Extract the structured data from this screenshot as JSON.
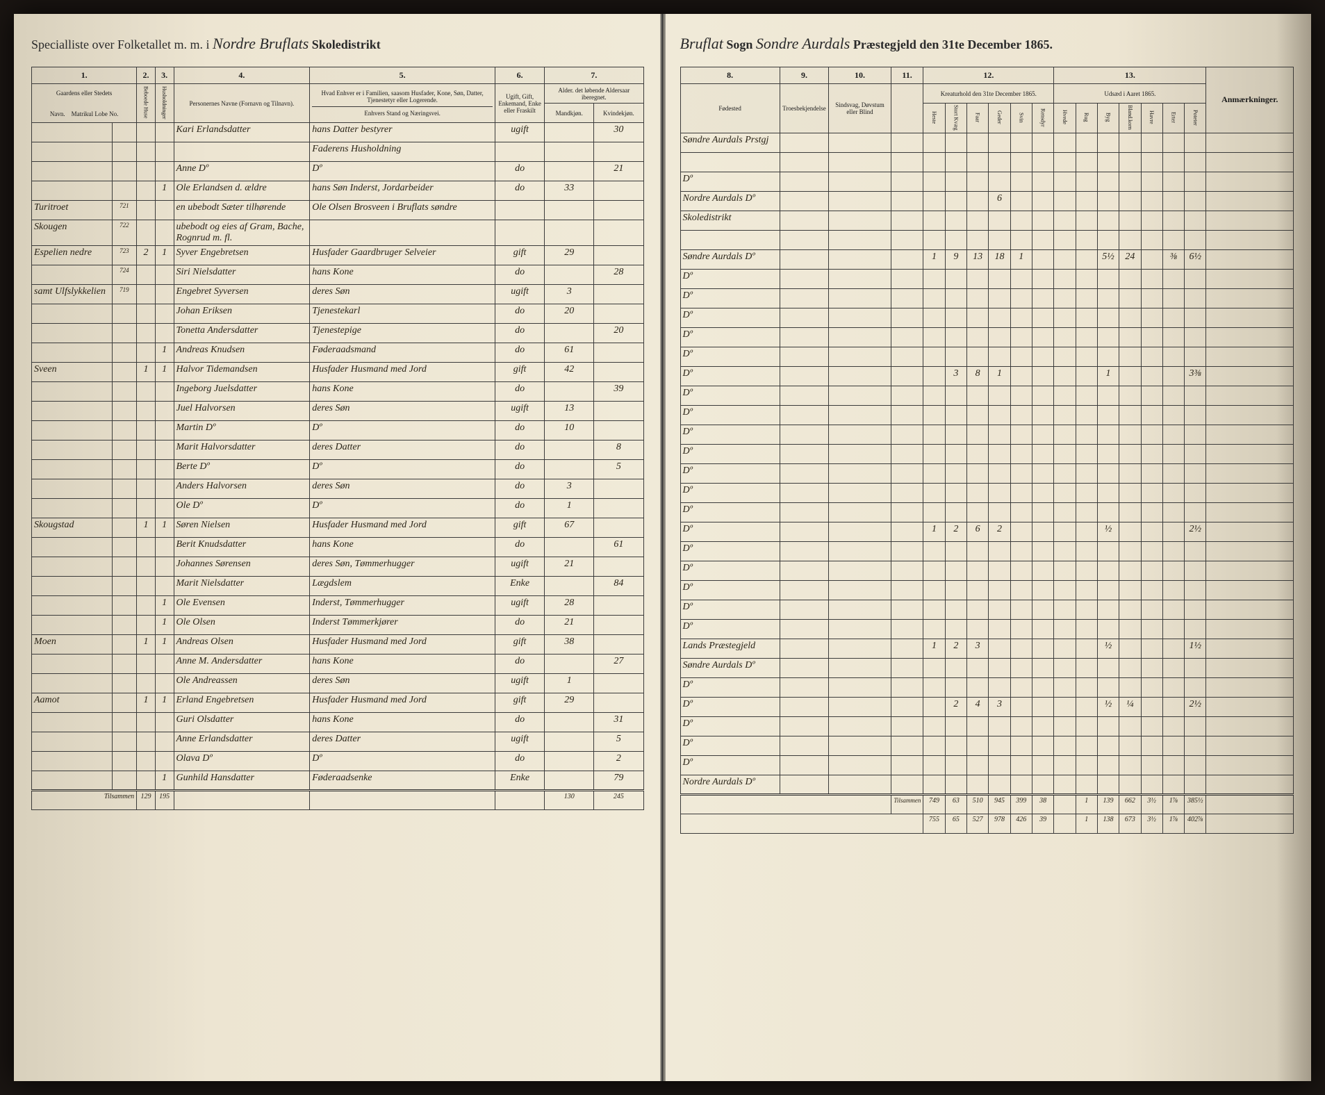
{
  "header_left": {
    "prefix": "Specialliste over Folketallet m. m. i",
    "district": "Nordre Bruflats",
    "suffix": "Skoledistrikt"
  },
  "header_right": {
    "sogn": "Bruflat",
    "sogn_label": "Sogn",
    "praestegjeld": "Sondre Aurdals",
    "praestegjeld_label": "Præstegjeld den",
    "date": "31te December 1865."
  },
  "col_headers_left": {
    "c1": "1.",
    "c2": "2.",
    "c3": "3.",
    "c4": "4.",
    "c5": "5.",
    "c6": "6.",
    "c7": "7.",
    "c1_label": "Gaardens eller Stedets",
    "c1_sub": "Navn.",
    "c1_sub2": "Matrikul Lobe No.",
    "c4_label": "Personernes Navne (Fornavn og Tilnavn).",
    "c5_label": "Hvad Enhver er i Familien, saasom Husfader, Kone, Søn, Datter, Tjenestetyr eller Logerende.",
    "c5_sub": "Enhvers Stand og Næringsvei.",
    "c6_label": "Ugift, Gift, Enkemand, Enke eller Fraskilt",
    "c7_label": "Alder. det løbende Aldersaar iberegnet.",
    "c7_sub_m": "Mandkjøn.",
    "c7_sub_k": "Kvindekjøn."
  },
  "col_headers_right": {
    "c8": "8.",
    "c9": "9.",
    "c10": "10.",
    "c11": "11.",
    "c12": "12.",
    "c13": "13.",
    "c8_label": "Fødested",
    "c9_label": "Troesbekjendelse",
    "c10_label": "Sindsvag, Døvstum eller Blind",
    "c11_label": "",
    "c12_label": "Kreaturhold den 31te December 1865.",
    "c13_label": "Udsæd i Aaret 1865.",
    "c12_cols": [
      "Heste",
      "Stort Kvæg",
      "Faar",
      "Geder",
      "Svin",
      "Rensdyr"
    ],
    "c13_cols": [
      "Hvede",
      "Rug",
      "Byg",
      "Bland.korn",
      "Havre",
      "Erter",
      "Poteter"
    ],
    "anm": "Anmærkninger."
  },
  "rows": [
    {
      "gaard": "",
      "mn": "",
      "p": "",
      "h": "",
      "navn": "Kari Erlandsdatter",
      "stand": "hans Datter bestyrer",
      "status": "ugift",
      "m": "",
      "k": "30",
      "fode": "Søndre Aurdals Prstgj",
      "c12": [
        "",
        "",
        "",
        "",
        "",
        ""
      ],
      "c13": [
        "",
        "",
        "",
        "",
        "",
        "",
        ""
      ]
    },
    {
      "gaard": "",
      "mn": "",
      "p": "",
      "h": "",
      "navn": "",
      "stand": "Faderens Husholdning",
      "status": "",
      "m": "",
      "k": "",
      "fode": "",
      "c12": [
        "",
        "",
        "",
        "",
        "",
        ""
      ],
      "c13": [
        "",
        "",
        "",
        "",
        "",
        "",
        ""
      ]
    },
    {
      "gaard": "",
      "mn": "",
      "p": "",
      "h": "",
      "navn": "Anne Dº",
      "stand": "Dº",
      "status": "do",
      "m": "",
      "k": "21",
      "fode": "Dº",
      "c12": [
        "",
        "",
        "",
        "",
        "",
        ""
      ],
      "c13": [
        "",
        "",
        "",
        "",
        "",
        "",
        ""
      ]
    },
    {
      "gaard": "",
      "mn": "",
      "p": "",
      "h": "1",
      "navn": "Ole Erlandsen d. ældre",
      "stand": "hans Søn Inderst, Jordarbeider",
      "status": "do",
      "m": "33",
      "k": "",
      "fode": "Nordre Aurdals Dº",
      "c12": [
        "",
        "",
        "",
        "6",
        "",
        ""
      ],
      "c13": [
        "",
        "",
        "",
        "",
        "",
        "",
        ""
      ]
    },
    {
      "gaard": "Turitroet",
      "mn": "721",
      "p": "",
      "h": "",
      "navn": "en ubebodt Sæter tilhørende",
      "stand": "Ole Olsen Brosveen i Bruflats søndre",
      "status": "",
      "m": "",
      "k": "",
      "fode": "Skoledistrikt",
      "c12": [
        "",
        "",
        "",
        "",
        "",
        ""
      ],
      "c13": [
        "",
        "",
        "",
        "",
        "",
        "",
        ""
      ]
    },
    {
      "gaard": "Skougen",
      "mn": "722",
      "p": "",
      "h": "",
      "navn": "ubebodt og eies af Gram, Bache, Rognrud m. fl.",
      "stand": "",
      "status": "",
      "m": "",
      "k": "",
      "fode": "",
      "c12": [
        "",
        "",
        "",
        "",
        "",
        ""
      ],
      "c13": [
        "",
        "",
        "",
        "",
        "",
        "",
        ""
      ]
    },
    {
      "gaard": "Espelien nedre",
      "mn": "723",
      "p": "2",
      "h": "1",
      "navn": "Syver Engebretsen",
      "stand": "Husfader Gaardbruger Selveier",
      "status": "gift",
      "m": "29",
      "k": "",
      "fode": "Søndre Aurdals Dº",
      "c12": [
        "1",
        "9",
        "13",
        "18",
        "1",
        ""
      ],
      "c13": [
        "",
        "",
        "5½",
        "24",
        "",
        "⅜",
        "6½"
      ]
    },
    {
      "gaard": "",
      "mn": "724",
      "p": "",
      "h": "",
      "navn": "Siri Nielsdatter",
      "stand": "hans Kone",
      "status": "do",
      "m": "",
      "k": "28",
      "fode": "Dº",
      "c12": [
        "",
        "",
        "",
        "",
        "",
        ""
      ],
      "c13": [
        "",
        "",
        "",
        "",
        "",
        "",
        ""
      ]
    },
    {
      "gaard": "samt Ulfslykkelien",
      "mn": "719",
      "p": "",
      "h": "",
      "navn": "Engebret Syversen",
      "stand": "deres Søn",
      "status": "ugift",
      "m": "3",
      "k": "",
      "fode": "Dº",
      "c12": [
        "",
        "",
        "",
        "",
        "",
        ""
      ],
      "c13": [
        "",
        "",
        "",
        "",
        "",
        "",
        ""
      ]
    },
    {
      "gaard": "",
      "mn": "",
      "p": "",
      "h": "",
      "navn": "Johan Eriksen",
      "stand": "Tjenestekarl",
      "status": "do",
      "m": "20",
      "k": "",
      "fode": "Dº",
      "c12": [
        "",
        "",
        "",
        "",
        "",
        ""
      ],
      "c13": [
        "",
        "",
        "",
        "",
        "",
        "",
        ""
      ]
    },
    {
      "gaard": "",
      "mn": "",
      "p": "",
      "h": "",
      "navn": "Tonetta Andersdatter",
      "stand": "Tjenestepige",
      "status": "do",
      "m": "",
      "k": "20",
      "fode": "Dº",
      "c12": [
        "",
        "",
        "",
        "",
        "",
        ""
      ],
      "c13": [
        "",
        "",
        "",
        "",
        "",
        "",
        ""
      ]
    },
    {
      "gaard": "",
      "mn": "",
      "p": "",
      "h": "1",
      "navn": "Andreas Knudsen",
      "stand": "Føderaadsmand",
      "status": "do",
      "m": "61",
      "k": "",
      "fode": "Dº",
      "c12": [
        "",
        "",
        "",
        "",
        "",
        ""
      ],
      "c13": [
        "",
        "",
        "",
        "",
        "",
        "",
        ""
      ]
    },
    {
      "gaard": "Sveen",
      "mn": "",
      "p": "1",
      "h": "1",
      "navn": "Halvor Tidemandsen",
      "stand": "Husfader Husmand med Jord",
      "status": "gift",
      "m": "42",
      "k": "",
      "fode": "Dº",
      "c12": [
        "",
        "3",
        "8",
        "1",
        "",
        ""
      ],
      "c13": [
        "",
        "",
        "1",
        "",
        "",
        "",
        "3⅜"
      ]
    },
    {
      "gaard": "",
      "mn": "",
      "p": "",
      "h": "",
      "navn": "Ingeborg Juelsdatter",
      "stand": "hans Kone",
      "status": "do",
      "m": "",
      "k": "39",
      "fode": "Dº",
      "c12": [
        "",
        "",
        "",
        "",
        "",
        ""
      ],
      "c13": [
        "",
        "",
        "",
        "",
        "",
        "",
        ""
      ]
    },
    {
      "gaard": "",
      "mn": "",
      "p": "",
      "h": "",
      "navn": "Juel Halvorsen",
      "stand": "deres Søn",
      "status": "ugift",
      "m": "13",
      "k": "",
      "fode": "Dº",
      "c12": [
        "",
        "",
        "",
        "",
        "",
        ""
      ],
      "c13": [
        "",
        "",
        "",
        "",
        "",
        "",
        ""
      ]
    },
    {
      "gaard": "",
      "mn": "",
      "p": "",
      "h": "",
      "navn": "Martin Dº",
      "stand": "Dº",
      "status": "do",
      "m": "10",
      "k": "",
      "fode": "Dº",
      "c12": [
        "",
        "",
        "",
        "",
        "",
        ""
      ],
      "c13": [
        "",
        "",
        "",
        "",
        "",
        "",
        ""
      ]
    },
    {
      "gaard": "",
      "mn": "",
      "p": "",
      "h": "",
      "navn": "Marit Halvorsdatter",
      "stand": "deres Datter",
      "status": "do",
      "m": "",
      "k": "8",
      "fode": "Dº",
      "c12": [
        "",
        "",
        "",
        "",
        "",
        ""
      ],
      "c13": [
        "",
        "",
        "",
        "",
        "",
        "",
        ""
      ]
    },
    {
      "gaard": "",
      "mn": "",
      "p": "",
      "h": "",
      "navn": "Berte Dº",
      "stand": "Dº",
      "status": "do",
      "m": "",
      "k": "5",
      "fode": "Dº",
      "c12": [
        "",
        "",
        "",
        "",
        "",
        ""
      ],
      "c13": [
        "",
        "",
        "",
        "",
        "",
        "",
        ""
      ]
    },
    {
      "gaard": "",
      "mn": "",
      "p": "",
      "h": "",
      "navn": "Anders Halvorsen",
      "stand": "deres Søn",
      "status": "do",
      "m": "3",
      "k": "",
      "fode": "Dº",
      "c12": [
        "",
        "",
        "",
        "",
        "",
        ""
      ],
      "c13": [
        "",
        "",
        "",
        "",
        "",
        "",
        ""
      ]
    },
    {
      "gaard": "",
      "mn": "",
      "p": "",
      "h": "",
      "navn": "Ole Dº",
      "stand": "Dº",
      "status": "do",
      "m": "1",
      "k": "",
      "fode": "Dº",
      "c12": [
        "",
        "",
        "",
        "",
        "",
        ""
      ],
      "c13": [
        "",
        "",
        "",
        "",
        "",
        "",
        ""
      ]
    },
    {
      "gaard": "Skougstad",
      "mn": "",
      "p": "1",
      "h": "1",
      "navn": "Søren Nielsen",
      "stand": "Husfader Husmand med Jord",
      "status": "gift",
      "m": "67",
      "k": "",
      "fode": "Dº",
      "c12": [
        "1",
        "2",
        "6",
        "2",
        "",
        ""
      ],
      "c13": [
        "",
        "",
        "½",
        "",
        "",
        "",
        "2½"
      ]
    },
    {
      "gaard": "",
      "mn": "",
      "p": "",
      "h": "",
      "navn": "Berit Knudsdatter",
      "stand": "hans Kone",
      "status": "do",
      "m": "",
      "k": "61",
      "fode": "Dº",
      "c12": [
        "",
        "",
        "",
        "",
        "",
        ""
      ],
      "c13": [
        "",
        "",
        "",
        "",
        "",
        "",
        ""
      ]
    },
    {
      "gaard": "",
      "mn": "",
      "p": "",
      "h": "",
      "navn": "Johannes Sørensen",
      "stand": "deres Søn, Tømmerhugger",
      "status": "ugift",
      "m": "21",
      "k": "",
      "fode": "Dº",
      "c12": [
        "",
        "",
        "",
        "",
        "",
        ""
      ],
      "c13": [
        "",
        "",
        "",
        "",
        "",
        "",
        ""
      ]
    },
    {
      "gaard": "",
      "mn": "",
      "p": "",
      "h": "",
      "navn": "Marit Nielsdatter",
      "stand": "Lægdslem",
      "status": "Enke",
      "m": "",
      "k": "84",
      "fode": "Dº",
      "c12": [
        "",
        "",
        "",
        "",
        "",
        ""
      ],
      "c13": [
        "",
        "",
        "",
        "",
        "",
        "",
        ""
      ]
    },
    {
      "gaard": "",
      "mn": "",
      "p": "",
      "h": "1",
      "navn": "Ole Evensen",
      "stand": "Inderst, Tømmerhugger",
      "status": "ugift",
      "m": "28",
      "k": "",
      "fode": "Dº",
      "c12": [
        "",
        "",
        "",
        "",
        "",
        ""
      ],
      "c13": [
        "",
        "",
        "",
        "",
        "",
        "",
        ""
      ]
    },
    {
      "gaard": "",
      "mn": "",
      "p": "",
      "h": "1",
      "navn": "Ole Olsen",
      "stand": "Inderst Tømmerkjører",
      "status": "do",
      "m": "21",
      "k": "",
      "fode": "Dº",
      "c12": [
        "",
        "",
        "",
        "",
        "",
        ""
      ],
      "c13": [
        "",
        "",
        "",
        "",
        "",
        "",
        ""
      ]
    },
    {
      "gaard": "Moen",
      "mn": "",
      "p": "1",
      "h": "1",
      "navn": "Andreas Olsen",
      "stand": "Husfader Husmand med Jord",
      "status": "gift",
      "m": "38",
      "k": "",
      "fode": "Lands Præstegjeld",
      "c12": [
        "1",
        "2",
        "3",
        "",
        "",
        ""
      ],
      "c13": [
        "",
        "",
        "½",
        "",
        "",
        "",
        "1½"
      ]
    },
    {
      "gaard": "",
      "mn": "",
      "p": "",
      "h": "",
      "navn": "Anne M. Andersdatter",
      "stand": "hans Kone",
      "status": "do",
      "m": "",
      "k": "27",
      "fode": "Søndre Aurdals Dº",
      "c12": [
        "",
        "",
        "",
        "",
        "",
        ""
      ],
      "c13": [
        "",
        "",
        "",
        "",
        "",
        "",
        ""
      ]
    },
    {
      "gaard": "",
      "mn": "",
      "p": "",
      "h": "",
      "navn": "Ole Andreassen",
      "stand": "deres Søn",
      "status": "ugift",
      "m": "1",
      "k": "",
      "fode": "Dº",
      "c12": [
        "",
        "",
        "",
        "",
        "",
        ""
      ],
      "c13": [
        "",
        "",
        "",
        "",
        "",
        "",
        ""
      ]
    },
    {
      "gaard": "Aamot",
      "mn": "",
      "p": "1",
      "h": "1",
      "navn": "Erland Engebretsen",
      "stand": "Husfader Husmand med Jord",
      "status": "gift",
      "m": "29",
      "k": "",
      "fode": "Dº",
      "c12": [
        "",
        "2",
        "4",
        "3",
        "",
        ""
      ],
      "c13": [
        "",
        "",
        "½",
        "¼",
        "",
        "",
        "2½"
      ]
    },
    {
      "gaard": "",
      "mn": "",
      "p": "",
      "h": "",
      "navn": "Guri Olsdatter",
      "stand": "hans Kone",
      "status": "do",
      "m": "",
      "k": "31",
      "fode": "Dº",
      "c12": [
        "",
        "",
        "",
        "",
        "",
        ""
      ],
      "c13": [
        "",
        "",
        "",
        "",
        "",
        "",
        ""
      ]
    },
    {
      "gaard": "",
      "mn": "",
      "p": "",
      "h": "",
      "navn": "Anne Erlandsdatter",
      "stand": "deres Datter",
      "status": "ugift",
      "m": "",
      "k": "5",
      "fode": "Dº",
      "c12": [
        "",
        "",
        "",
        "",
        "",
        ""
      ],
      "c13": [
        "",
        "",
        "",
        "",
        "",
        "",
        ""
      ]
    },
    {
      "gaard": "",
      "mn": "",
      "p": "",
      "h": "",
      "navn": "Olava Dº",
      "stand": "Dº",
      "status": "do",
      "m": "",
      "k": "2",
      "fode": "Dº",
      "c12": [
        "",
        "",
        "",
        "",
        "",
        ""
      ],
      "c13": [
        "",
        "",
        "",
        "",
        "",
        "",
        ""
      ]
    },
    {
      "gaard": "",
      "mn": "",
      "p": "",
      "h": "1",
      "navn": "Gunhild Hansdatter",
      "stand": "Føderaadsenke",
      "status": "Enke",
      "m": "",
      "k": "79",
      "fode": "Nordre Aurdals Dº",
      "c12": [
        "",
        "",
        "",
        "",
        "",
        ""
      ],
      "c13": [
        "",
        "",
        "",
        "",
        "",
        "",
        ""
      ]
    }
  ],
  "summary": {
    "label": "Tilsammen",
    "left_totals": [
      "129",
      "195",
      "",
      "",
      "130",
      "245"
    ],
    "right_row1": [
      "749",
      "63",
      "510",
      "945",
      "399",
      "38",
      "",
      "1",
      "139",
      "662",
      "3½",
      "1⅞",
      "385½"
    ],
    "right_row2": [
      "755",
      "65",
      "527",
      "978",
      "426",
      "39",
      "",
      "1",
      "138",
      "673",
      "3½",
      "1⅞",
      "402⅞"
    ]
  },
  "colors": {
    "paper": "#f0ead8",
    "ink": "#1a1a1a",
    "handwriting": "#2a2418",
    "border": "#3a3a3a"
  }
}
